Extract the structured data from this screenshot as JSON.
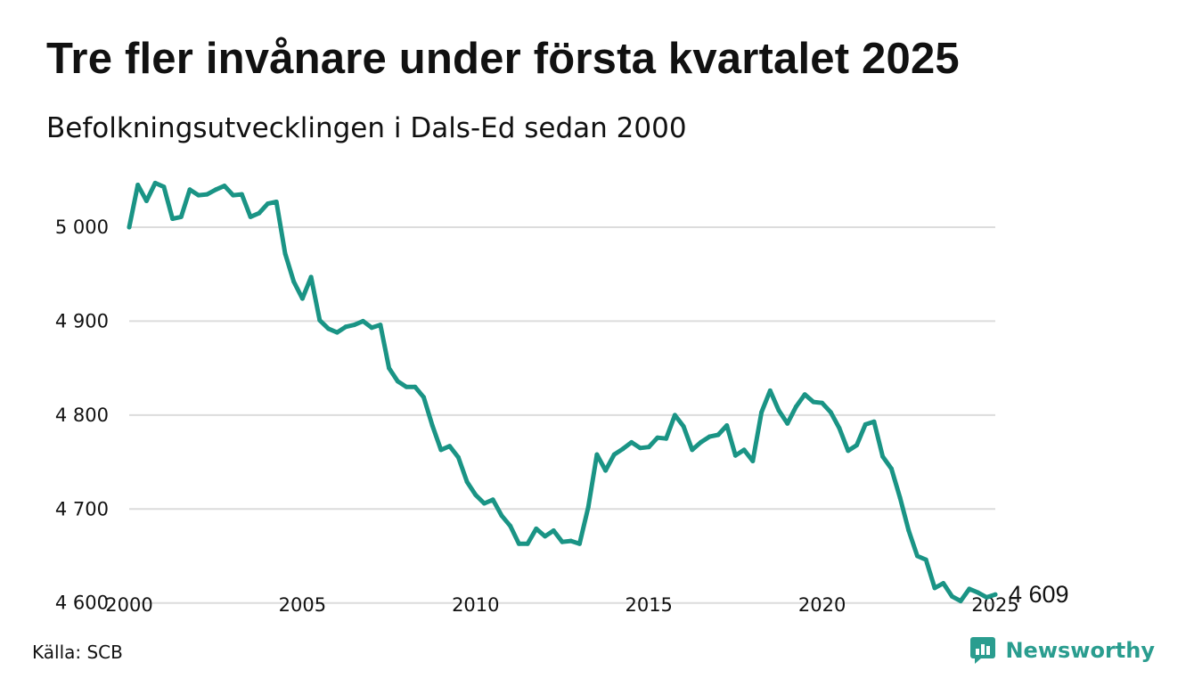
{
  "title": "Tre fler invånare under första kvartalet 2025",
  "subtitle": "Befolkningsutvecklingen i Dals-Ed sedan 2000",
  "source": "Källa: SCB",
  "brand": "Newsworthy",
  "colors": {
    "line": "#1a9485",
    "grid": "#dcdcdc",
    "brand": "#2a9d8f"
  },
  "chart_data": {
    "type": "line",
    "title": "Tre fler invånare under första kvartalet 2025",
    "subtitle": "Befolkningsutvecklingen i Dals-Ed sedan 2000",
    "xlabel": "",
    "ylabel": "",
    "xlim": [
      2000,
      2025
    ],
    "ylim": [
      4595,
      5055
    ],
    "grid": true,
    "x_ticks": [
      {
        "value": 2000,
        "label": "2000"
      },
      {
        "value": 2005,
        "label": "2005"
      },
      {
        "value": 2010,
        "label": "2010"
      },
      {
        "value": 2015,
        "label": "2015"
      },
      {
        "value": 2020,
        "label": "2020"
      },
      {
        "value": 2025,
        "label": "2025"
      }
    ],
    "y_ticks": [
      {
        "value": 4600,
        "label": "4 600"
      },
      {
        "value": 4700,
        "label": "4 700"
      },
      {
        "value": 4800,
        "label": "4 800"
      },
      {
        "value": 4900,
        "label": "4 900"
      },
      {
        "value": 5000,
        "label": "5 000"
      }
    ],
    "end_label": "4 609",
    "series": [
      {
        "x": [
          2000.0,
          2000.25,
          2000.5,
          2000.75,
          2001.0,
          2001.25,
          2001.5,
          2001.75,
          2002.0,
          2002.25,
          2002.5,
          2002.75,
          2003.0,
          2003.25,
          2003.5,
          2003.75,
          2004.0,
          2004.25,
          2004.5,
          2004.75,
          2005.0,
          2005.25,
          2005.5,
          2005.75,
          2006.0,
          2006.25,
          2006.5,
          2006.75,
          2007.0,
          2007.25,
          2007.5,
          2007.75,
          2008.0,
          2008.25,
          2008.5,
          2008.75,
          2009.0,
          2009.25,
          2009.5,
          2009.75,
          2010.0,
          2010.25,
          2010.5,
          2010.75,
          2011.0,
          2011.25,
          2011.5,
          2011.75,
          2012.0,
          2012.25,
          2012.5,
          2012.75,
          2013.0,
          2013.25,
          2013.5,
          2013.75,
          2014.0,
          2014.25,
          2014.5,
          2014.75,
          2015.0,
          2015.25,
          2015.5,
          2015.75,
          2016.0,
          2016.25,
          2016.5,
          2016.75,
          2017.0,
          2017.25,
          2017.5,
          2017.75,
          2018.0,
          2018.25,
          2018.5,
          2018.75,
          2019.0,
          2019.25,
          2019.5,
          2019.75,
          2020.0,
          2020.25,
          2020.5,
          2020.75,
          2021.0,
          2021.25,
          2021.5,
          2021.75,
          2022.0,
          2022.25,
          2022.5,
          2022.75,
          2023.0,
          2023.25,
          2023.5,
          2023.75,
          2024.0,
          2024.25,
          2024.5,
          2024.75,
          2025.0
        ],
        "values": [
          5000,
          5045,
          5028,
          5047,
          5043,
          5009,
          5011,
          5040,
          5034,
          5035,
          5040,
          5044,
          5034,
          5035,
          5011,
          5015,
          5025,
          5027,
          4972,
          4942,
          4924,
          4947,
          4901,
          4892,
          4888,
          4894,
          4896,
          4900,
          4893,
          4896,
          4850,
          4836,
          4830,
          4830,
          4819,
          4789,
          4763,
          4767,
          4755,
          4729,
          4715,
          4706,
          4710,
          4693,
          4682,
          4663,
          4663,
          4679,
          4671,
          4677,
          4665,
          4666,
          4663,
          4702,
          4758,
          4741,
          4758,
          4764,
          4771,
          4765,
          4766,
          4776,
          4775,
          4800,
          4788,
          4763,
          4771,
          4777,
          4779,
          4789,
          4757,
          4763,
          4751,
          4803,
          4826,
          4805,
          4791,
          4809,
          4822,
          4814,
          4813,
          4803,
          4786,
          4762,
          4768,
          4790,
          4793,
          4756,
          4743,
          4712,
          4677,
          4650,
          4646,
          4616,
          4621,
          4607,
          4602,
          4615,
          4611,
          4606,
          4609
        ]
      }
    ]
  }
}
